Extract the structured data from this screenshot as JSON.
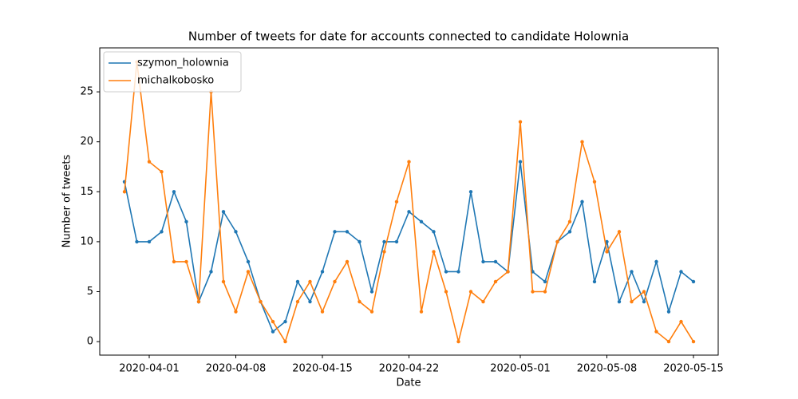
{
  "chart_data": {
    "type": "line",
    "title": "Number of tweets for date for accounts connected to candidate Holownia",
    "x_label": "Date",
    "y_label": "Number of tweets",
    "x": [
      "2020-03-30",
      "2020-03-31",
      "2020-04-01",
      "2020-04-02",
      "2020-04-03",
      "2020-04-04",
      "2020-04-05",
      "2020-04-06",
      "2020-04-07",
      "2020-04-08",
      "2020-04-09",
      "2020-04-10",
      "2020-04-11",
      "2020-04-12",
      "2020-04-13",
      "2020-04-14",
      "2020-04-15",
      "2020-04-16",
      "2020-04-17",
      "2020-04-18",
      "2020-04-19",
      "2020-04-20",
      "2020-04-21",
      "2020-04-22",
      "2020-04-23",
      "2020-04-24",
      "2020-04-25",
      "2020-04-26",
      "2020-04-27",
      "2020-04-28",
      "2020-04-29",
      "2020-04-30",
      "2020-05-01",
      "2020-05-02",
      "2020-05-03",
      "2020-05-04",
      "2020-05-05",
      "2020-05-06",
      "2020-05-07",
      "2020-05-08",
      "2020-05-09",
      "2020-05-10",
      "2020-05-11",
      "2020-05-12",
      "2020-05-13",
      "2020-05-14",
      "2020-05-15"
    ],
    "series": [
      {
        "name": "szymon_holownia",
        "color": "#1f77b4",
        "values": [
          16,
          10,
          10,
          11,
          15,
          12,
          4,
          7,
          13,
          11,
          8,
          4,
          1,
          2,
          6,
          4,
          7,
          11,
          11,
          10,
          5,
          10,
          10,
          13,
          12,
          11,
          7,
          7,
          15,
          8,
          8,
          7,
          18,
          7,
          6,
          10,
          11,
          14,
          6,
          10,
          4,
          7,
          4,
          8,
          3,
          7,
          6
        ]
      },
      {
        "name": "michalkobosko",
        "color": "#ff7f0e",
        "values": [
          15,
          28,
          18,
          17,
          8,
          8,
          4,
          25,
          6,
          3,
          7,
          4,
          2,
          0,
          4,
          6,
          3,
          6,
          8,
          4,
          3,
          9,
          14,
          18,
          3,
          9,
          5,
          0,
          5,
          4,
          6,
          7,
          22,
          5,
          5,
          10,
          12,
          20,
          16,
          9,
          11,
          4,
          5,
          1,
          0,
          2,
          0
        ]
      }
    ],
    "xlim": [
      "2020-03-28",
      "2020-05-17"
    ],
    "xticks": [
      "2020-04-01",
      "2020-04-08",
      "2020-04-15",
      "2020-04-22",
      "2020-05-01",
      "2020-05-08",
      "2020-05-15"
    ],
    "ylim": [
      -1.35,
      29.4
    ],
    "yticks": [
      0,
      5,
      10,
      15,
      20,
      25
    ],
    "legend": "upper left",
    "grid": false
  }
}
